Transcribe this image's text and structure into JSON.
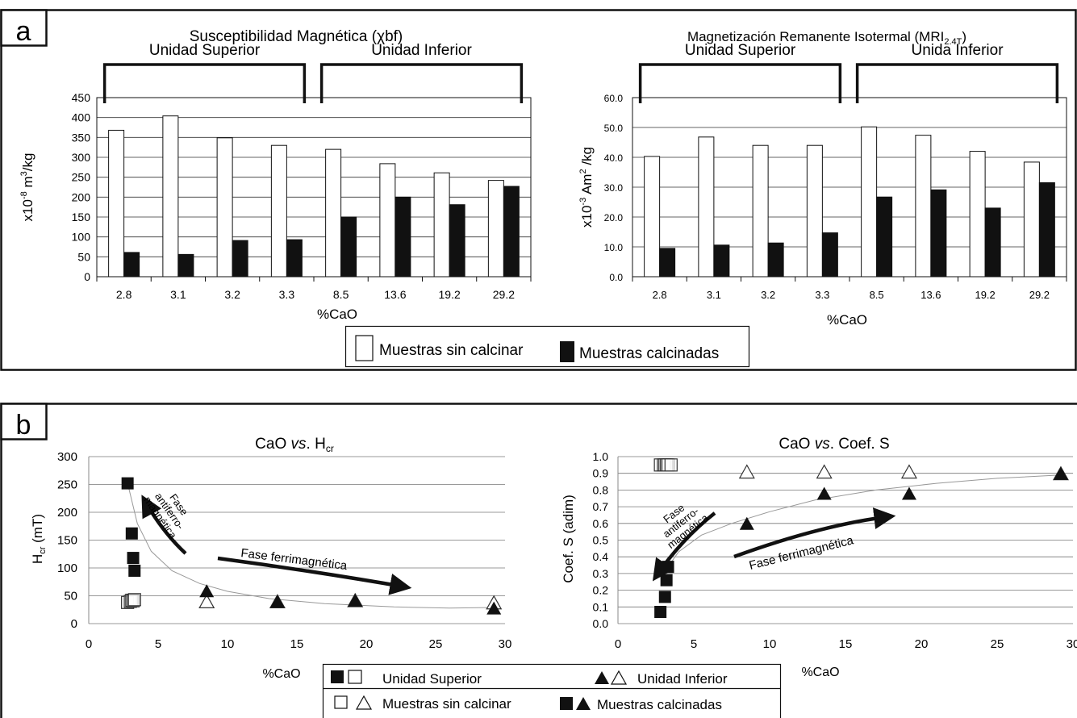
{
  "panels": {
    "a": {
      "letter": "a"
    },
    "b": {
      "letter": "b"
    }
  },
  "legend_a": {
    "uncalcined": "Muestras sin calcinar",
    "calcined": "Muestras calcinadas"
  },
  "legend_b": {
    "superior": "Unidad Superior",
    "inferior": "Unidad Inferior",
    "uncalcined": "Muestras sin calcinar",
    "calcined": "Muestras calcinadas"
  },
  "chart_data": [
    {
      "id": "a1",
      "type": "bar",
      "title": "Susceptibilidad Magnética (χbf)",
      "xlabel": "%CaO",
      "ylabel": "x10-8 m3/kg",
      "categories": [
        "2.8",
        "3.1",
        "3.2",
        "3.3",
        "8.5",
        "13.6",
        "19.2",
        "29.2"
      ],
      "series": [
        {
          "name": "Muestras sin calcinar",
          "color": "#ffffff",
          "values": [
            368,
            404,
            349,
            330,
            320,
            284,
            261,
            242
          ]
        },
        {
          "name": "Muestras calcinadas",
          "color": "#111111",
          "values": [
            61,
            56,
            91,
            93,
            150,
            200,
            181,
            227
          ]
        }
      ],
      "ylim": [
        0,
        450
      ],
      "yticks": [
        "0",
        "50",
        "100",
        "150",
        "200",
        "250",
        "300",
        "350",
        "400",
        "450"
      ],
      "grid": true,
      "groups": [
        {
          "label": "Unidad Superior",
          "from": 0,
          "to": 3
        },
        {
          "label": "Unidad Inferior",
          "from": 4,
          "to": 7
        }
      ]
    },
    {
      "id": "a2",
      "type": "bar",
      "title": "Magnetización Remanente Isotermal (MRI2.4T)",
      "xlabel": "%CaO",
      "ylabel": "x10-3 Am2/kg",
      "categories": [
        "2.8",
        "3.1",
        "3.2",
        "3.3",
        "8.5",
        "13.6",
        "19.2",
        "29.2"
      ],
      "series": [
        {
          "name": "Muestras sin calcinar",
          "color": "#ffffff",
          "values": [
            40.3,
            46.8,
            44.0,
            44.0,
            50.2,
            47.4,
            42.0,
            38.4
          ]
        },
        {
          "name": "Muestras calcinadas",
          "color": "#111111",
          "values": [
            9.5,
            10.6,
            11.3,
            14.7,
            26.7,
            29.1,
            23.0,
            31.5
          ]
        }
      ],
      "ylim": [
        0,
        60
      ],
      "yticks": [
        "0.0",
        "10.0",
        "20.0",
        "30.0",
        "40.0",
        "50.0",
        "60.0"
      ],
      "grid": true,
      "groups": [
        {
          "label": "Unidad Superior",
          "from": 0,
          "to": 3
        },
        {
          "label": "Unida Inferior",
          "from": 4,
          "to": 7
        }
      ]
    },
    {
      "id": "b1",
      "type": "scatter",
      "title": "CaO vs. Hcr",
      "xlabel": "%CaO",
      "ylabel": "Hcr (mT)",
      "xlim": [
        0,
        30
      ],
      "ylim": [
        0,
        300
      ],
      "xticks": [
        "0",
        "5",
        "10",
        "15",
        "20",
        "25",
        "30"
      ],
      "yticks": [
        "0",
        "50",
        "100",
        "150",
        "200",
        "250",
        "300"
      ],
      "grid": true,
      "series": [
        {
          "name": "Unidad Superior - Muestras sin calcinar",
          "marker": "square-open",
          "points": [
            [
              2.8,
              38
            ],
            [
              3.0,
              40
            ],
            [
              3.1,
              42
            ],
            [
              3.2,
              41
            ],
            [
              3.3,
              43
            ]
          ]
        },
        {
          "name": "Unidad Superior - Muestras calcinadas",
          "marker": "square-filled",
          "points": [
            [
              2.8,
              252
            ],
            [
              3.1,
              162
            ],
            [
              3.2,
              118
            ],
            [
              3.3,
              95
            ]
          ]
        },
        {
          "name": "Unidad Inferior - Muestras sin calcinar",
          "marker": "triangle-open",
          "points": [
            [
              8.5,
              40
            ],
            [
              13.6,
              40
            ],
            [
              19.2,
              42
            ],
            [
              29.2,
              38
            ]
          ]
        },
        {
          "name": "Unidad Inferior - Muestras calcinadas",
          "marker": "triangle-filled",
          "points": [
            [
              8.5,
              59
            ],
            [
              13.6,
              40
            ],
            [
              19.2,
              42
            ],
            [
              29.2,
              28
            ]
          ]
        }
      ],
      "trend": [
        [
          2.8,
          252
        ],
        [
          3.5,
          180
        ],
        [
          4.5,
          130
        ],
        [
          6,
          95
        ],
        [
          8,
          72
        ],
        [
          10,
          58
        ],
        [
          13,
          45
        ],
        [
          17,
          36
        ],
        [
          22,
          30
        ],
        [
          26,
          28
        ],
        [
          29.2,
          29
        ]
      ],
      "annotations": [
        {
          "text": "Fase antiferro- magnética",
          "lines": [
            "Fase",
            "antiferro-",
            "magnética"
          ]
        },
        {
          "text": "Fase ferrimagnética"
        }
      ]
    },
    {
      "id": "b2",
      "type": "scatter",
      "title": "CaO vs. Coef. S",
      "xlabel": "%CaO",
      "ylabel": "Coef. S (adim)",
      "xlim": [
        0,
        30
      ],
      "ylim": [
        0,
        1.0
      ],
      "xticks": [
        "0",
        "5",
        "10",
        "15",
        "20",
        "25",
        "30"
      ],
      "yticks": [
        "0.0",
        "0.1",
        "0.2",
        "0.3",
        "0.4",
        "0.5",
        "0.6",
        "0.7",
        "0.8",
        "0.9",
        "1.0"
      ],
      "grid": true,
      "series": [
        {
          "name": "Unidad Superior - Muestras sin calcinar",
          "marker": "square-open",
          "points": [
            [
              2.8,
              0.95
            ],
            [
              3.0,
              0.95
            ],
            [
              3.1,
              0.95
            ],
            [
              3.2,
              0.95
            ],
            [
              3.3,
              0.95
            ],
            [
              3.5,
              0.95
            ]
          ]
        },
        {
          "name": "Unidad Superior - Muestras calcinadas",
          "marker": "square-filled",
          "points": [
            [
              2.8,
              0.07
            ],
            [
              3.1,
              0.16
            ],
            [
              3.2,
              0.26
            ],
            [
              3.3,
              0.34
            ]
          ]
        },
        {
          "name": "Unidad Inferior - Muestras sin calcinar",
          "marker": "triangle-open",
          "points": [
            [
              8.5,
              0.91
            ],
            [
              13.6,
              0.91
            ],
            [
              19.2,
              0.91
            ],
            [
              29.2,
              0.9
            ]
          ]
        },
        {
          "name": "Unidad Inferior - Muestras calcinadas",
          "marker": "triangle-filled",
          "points": [
            [
              8.5,
              0.6
            ],
            [
              13.6,
              0.78
            ],
            [
              19.2,
              0.78
            ],
            [
              29.2,
              0.9
            ]
          ]
        }
      ],
      "trend": [
        [
          3.3,
          0.34
        ],
        [
          4,
          0.43
        ],
        [
          5.5,
          0.53
        ],
        [
          7.5,
          0.6
        ],
        [
          10,
          0.67
        ],
        [
          13,
          0.74
        ],
        [
          17,
          0.8
        ],
        [
          21,
          0.84
        ],
        [
          25,
          0.87
        ],
        [
          29.2,
          0.89
        ]
      ],
      "annotations": [
        {
          "text": "Fase antiferro- magnética",
          "lines": [
            "Fase",
            "antiferro-",
            "magnética"
          ]
        },
        {
          "text": "Fase ferrimagnética"
        }
      ]
    }
  ]
}
